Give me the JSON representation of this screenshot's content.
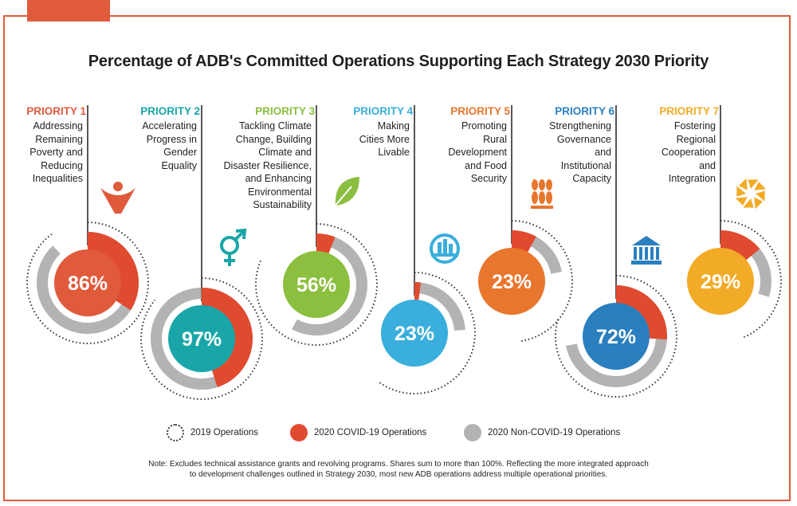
{
  "title": "Percentage of ADB's Committed Operations Supporting Each Strategy 2030 Priority",
  "colors": {
    "frame": "#e05a3c",
    "covid": "#e04a2f",
    "noncovid": "#b3b3b3",
    "dotted": "#333333"
  },
  "chart_data": {
    "type": "radial-bar",
    "series": [
      {
        "name": "2019 Operations",
        "values": [
          90,
          86,
          82,
          60,
          48,
          80,
          44
        ]
      },
      {
        "name": "2020 COVID-19 Operations",
        "values": [
          34,
          45,
          6,
          2,
          8,
          26,
          14
        ]
      },
      {
        "name": "2020 Non-COVID-19 Operations",
        "values": [
          88,
          100,
          58,
          24,
          22,
          72,
          30
        ]
      }
    ],
    "categories": [
      "PRIORITY 1",
      "PRIORITY 2",
      "PRIORITY 3",
      "PRIORITY 4",
      "PRIORITY 5",
      "PRIORITY 6",
      "PRIORITY 7"
    ],
    "priorities": [
      {
        "label": "PRIORITY 1",
        "desc": "Addressing\nRemaining\nPoverty and\nReducing\nInequalities",
        "value": "86%",
        "color": "#e05a3c",
        "icon": "person-icon"
      },
      {
        "label": "PRIORITY 2",
        "desc": "Accelerating\nProgress in\nGender\nEquality",
        "value": "97%",
        "color": "#1aa6a8",
        "icon": "gender-icon"
      },
      {
        "label": "PRIORITY 3",
        "desc": "Tackling Climate\nChange, Building\nClimate and\nDisaster Resilience,\nand Enhancing\nEnvironmental\nSustainability",
        "value": "56%",
        "color": "#8cbf3f",
        "icon": "leaf-icon"
      },
      {
        "label": "PRIORITY 4",
        "desc": "Making\nCities More\nLivable",
        "value": "23%",
        "color": "#3aaedc",
        "icon": "city-icon"
      },
      {
        "label": "PRIORITY 5",
        "desc": "Promoting\nRural\nDevelopment\nand Food\nSecurity",
        "value": "23%",
        "color": "#e8762d",
        "icon": "wheat-icon"
      },
      {
        "label": "PRIORITY 6",
        "desc": "Strengthening\nGovernance\nand\nInstitutional\nCapacity",
        "value": "72%",
        "color": "#2a7fbf",
        "icon": "institution-icon"
      },
      {
        "label": "PRIORITY 7",
        "desc": "Fostering\nRegional\nCooperation\nand\nIntegration",
        "value": "29%",
        "color": "#f2ab27",
        "icon": "pinwheel-icon"
      }
    ]
  },
  "legend": {
    "dotted": "2019 Operations",
    "covid": "2020 COVID-19 Operations",
    "noncovid": "2020 Non-COVID-19 Operations"
  },
  "note": "Note: Excludes technical assistance grants and revolving programs. Shares sum to more than 100%. Reflecting the more integrated approach\nto development challenges outlined in Strategy 2030, most new ADB operations address multiple operational priorities."
}
